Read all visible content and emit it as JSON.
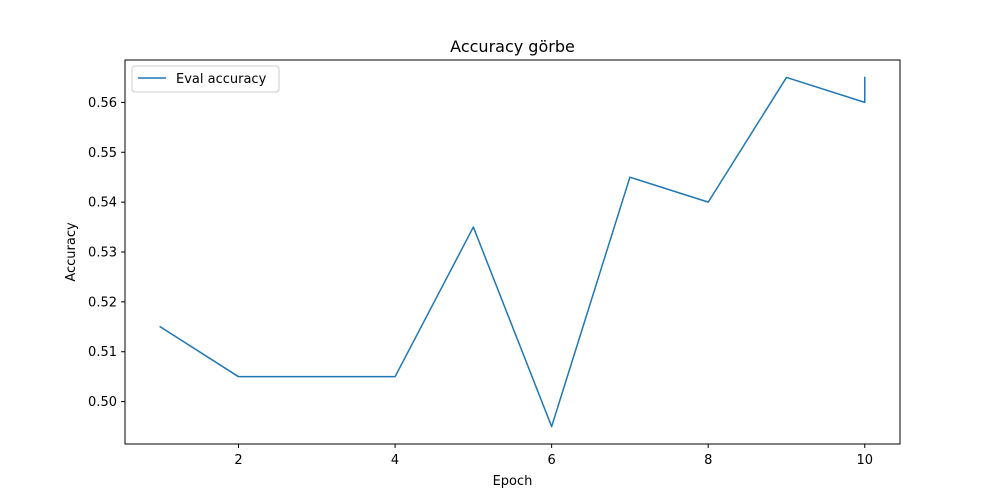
{
  "chart_data": {
    "type": "line",
    "title": "Accuracy görbe",
    "xlabel": "Epoch",
    "ylabel": "Accuracy",
    "xlim": [
      0.55,
      10.45
    ],
    "ylim": [
      0.4915,
      0.5685
    ],
    "xticks": [
      2,
      4,
      6,
      8,
      10
    ],
    "yticks": [
      0.5,
      0.51,
      0.52,
      0.53,
      0.54,
      0.55,
      0.56
    ],
    "ytick_labels": [
      "0.50",
      "0.51",
      "0.52",
      "0.53",
      "0.54",
      "0.55",
      "0.56"
    ],
    "grid": false,
    "legend_position": "top-left",
    "series": [
      {
        "name": "Eval accuracy",
        "color": "#1f77b4",
        "x": [
          1,
          2,
          3,
          4,
          5,
          6,
          7,
          8,
          9,
          10,
          10
        ],
        "y": [
          0.515,
          0.505,
          0.505,
          0.505,
          0.535,
          0.495,
          0.545,
          0.54,
          0.565,
          0.56,
          0.565
        ]
      }
    ]
  }
}
